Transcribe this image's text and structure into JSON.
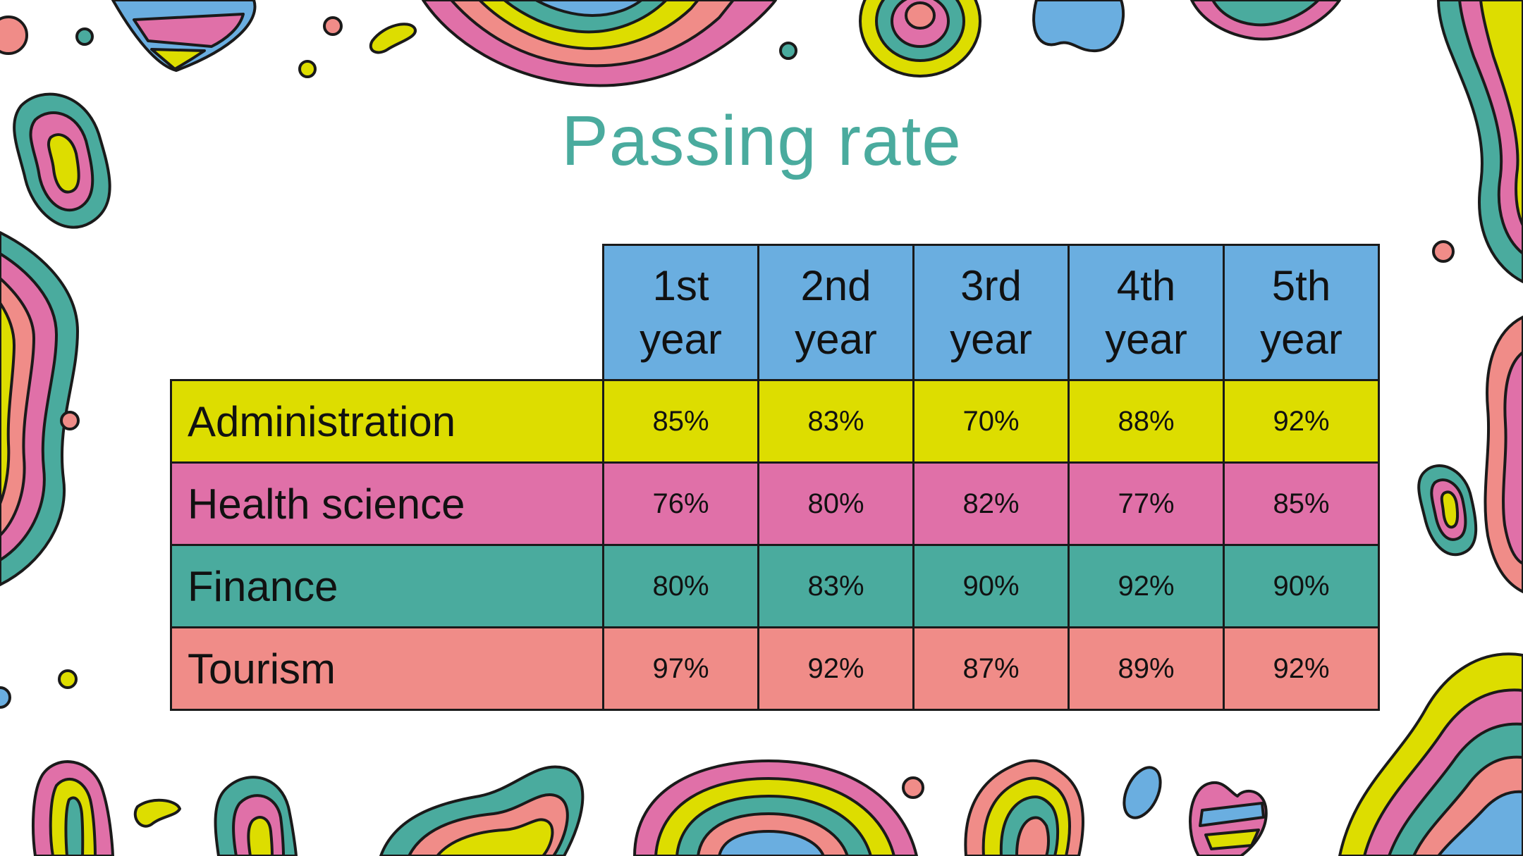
{
  "slide": {
    "title": "Passing rate"
  },
  "table": {
    "columns": [
      {
        "line1": "1st",
        "line2": "year"
      },
      {
        "line1": "2nd",
        "line2": "year"
      },
      {
        "line1": "3rd",
        "line2": "year"
      },
      {
        "line1": "4th",
        "line2": "year"
      },
      {
        "line1": "5th",
        "line2": "year"
      }
    ],
    "rows": [
      {
        "label": "Administration",
        "color": "#dddd00",
        "values": [
          "85%",
          "83%",
          "70%",
          "88%",
          "92%"
        ]
      },
      {
        "label": "Health science",
        "color": "#e070a8",
        "values": [
          "76%",
          "80%",
          "82%",
          "77%",
          "85%"
        ]
      },
      {
        "label": "Finance",
        "color": "#4aab9e",
        "values": [
          "80%",
          "83%",
          "90%",
          "92%",
          "90%"
        ]
      },
      {
        "label": "Tourism",
        "color": "#f08c88",
        "values": [
          "97%",
          "92%",
          "87%",
          "89%",
          "92%"
        ]
      }
    ],
    "header_color": "#6aaee0"
  },
  "theme": {
    "title_color": "#4aab9e"
  }
}
